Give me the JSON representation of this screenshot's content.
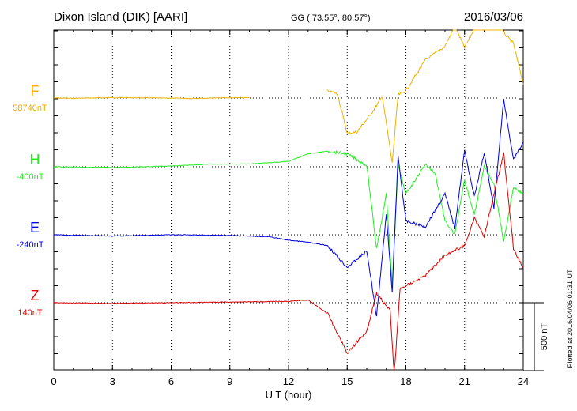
{
  "header": {
    "station": "Dixon Island (DIK)  [AARI]",
    "coords": "GG ( 73.55°,  80.57°)",
    "date": "2016/03/06"
  },
  "footer": {
    "plotted": "Plotted at 2016/04/06 01:31  UT",
    "scale_label": "500 nT"
  },
  "colors": {
    "F": "#f0b000",
    "H": "#22ee22",
    "E": "#0000dd",
    "Z": "#dd0000"
  },
  "chart_data": {
    "type": "line",
    "xlabel": "U T (hour)",
    "xlim": [
      0,
      24
    ],
    "xticks": [
      "0",
      "3",
      "6",
      "9",
      "12",
      "15",
      "18",
      "21",
      "24"
    ],
    "scale_bar_nT": 500,
    "series": [
      {
        "name": "F",
        "baseline_label": "58740nT",
        "segments": [
          [
            [
              0,
              0
            ],
            [
              1,
              -2
            ],
            [
              3,
              3
            ],
            [
              5,
              1
            ],
            [
              7,
              -3
            ],
            [
              9,
              2
            ],
            [
              10,
              2
            ]
          ],
          [
            [
              14,
              55
            ],
            [
              14.5,
              30
            ],
            [
              15,
              -260
            ],
            [
              15.5,
              -250
            ],
            [
              16.2,
              -120
            ],
            [
              16.8,
              10
            ],
            [
              17.3,
              -480
            ],
            [
              17.6,
              20
            ],
            [
              18,
              55
            ],
            [
              19,
              280
            ],
            [
              20,
              380
            ],
            [
              20.5,
              530
            ],
            [
              21,
              370
            ],
            [
              21.5,
              510
            ],
            [
              22,
              690
            ],
            [
              22.5,
              950
            ],
            [
              23,
              480
            ],
            [
              23.5,
              400
            ],
            [
              24,
              100
            ]
          ]
        ]
      },
      {
        "name": "H",
        "baseline_label": "-400nT",
        "segments": [
          [
            [
              0,
              0
            ],
            [
              3,
              -5
            ],
            [
              6,
              5
            ],
            [
              8,
              20
            ],
            [
              10,
              20
            ],
            [
              12,
              40
            ],
            [
              13,
              95
            ],
            [
              14,
              115
            ],
            [
              15,
              95
            ],
            [
              16,
              10
            ],
            [
              16.5,
              -600
            ],
            [
              17,
              -200
            ],
            [
              17.3,
              -870
            ],
            [
              17.6,
              10
            ],
            [
              18,
              -200
            ],
            [
              19,
              20
            ],
            [
              19.5,
              -50
            ],
            [
              20,
              -400
            ],
            [
              20.5,
              -500
            ],
            [
              21,
              -100
            ],
            [
              21.5,
              -350
            ],
            [
              22,
              0
            ],
            [
              22.5,
              -130
            ],
            [
              23,
              -550
            ],
            [
              23.5,
              -150
            ],
            [
              24,
              -200
            ]
          ]
        ]
      },
      {
        "name": "E",
        "baseline_label": "-240nT",
        "segments": [
          [
            [
              0,
              0
            ],
            [
              3,
              -10
            ],
            [
              6,
              0
            ],
            [
              9,
              -5
            ],
            [
              11,
              -15
            ],
            [
              12,
              -40
            ],
            [
              13,
              -55
            ],
            [
              14,
              -80
            ],
            [
              15,
              -240
            ],
            [
              16,
              -120
            ],
            [
              16.5,
              -600
            ],
            [
              17,
              150
            ],
            [
              17.3,
              -420
            ],
            [
              17.6,
              580
            ],
            [
              18,
              100
            ],
            [
              19,
              60
            ],
            [
              20,
              300
            ],
            [
              20.5,
              50
            ],
            [
              21,
              620
            ],
            [
              21.5,
              280
            ],
            [
              22,
              600
            ],
            [
              22.5,
              200
            ],
            [
              23,
              1000
            ],
            [
              23.5,
              550
            ],
            [
              24,
              680
            ]
          ]
        ]
      },
      {
        "name": "Z",
        "baseline_label": "140nT",
        "segments": [
          [
            [
              0,
              0
            ],
            [
              3,
              -5
            ],
            [
              6,
              0
            ],
            [
              9,
              5
            ],
            [
              12,
              10
            ],
            [
              13,
              20
            ],
            [
              14,
              -80
            ],
            [
              15,
              -370
            ],
            [
              16,
              -210
            ],
            [
              16.5,
              70
            ],
            [
              17.2,
              -60
            ],
            [
              17.4,
              -540
            ],
            [
              17.7,
              100
            ],
            [
              18.2,
              140
            ],
            [
              19,
              200
            ],
            [
              20,
              350
            ],
            [
              21,
              420
            ],
            [
              21.5,
              620
            ],
            [
              22,
              490
            ],
            [
              23,
              1100
            ],
            [
              23.5,
              400
            ],
            [
              24,
              250
            ]
          ]
        ]
      }
    ]
  }
}
